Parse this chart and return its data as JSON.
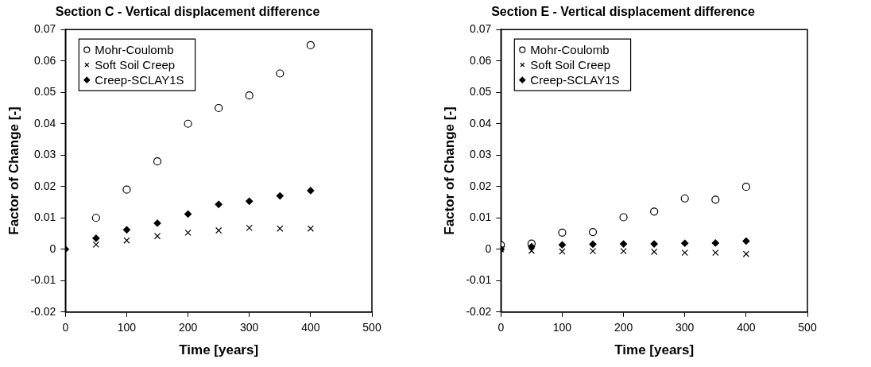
{
  "chart_data": [
    {
      "type": "scatter",
      "title": "Section C - Vertical displacement difference",
      "xlabel": "Time [years]",
      "ylabel": "Factor of Change [-]",
      "x": [
        0,
        50,
        100,
        150,
        200,
        250,
        300,
        350,
        400
      ],
      "series": [
        {
          "name": "Mohr-Coulomb",
          "color": "#000000",
          "marker": "circle",
          "values": [
            null,
            0.01,
            0.019,
            0.028,
            0.04,
            0.045,
            0.049,
            0.056,
            0.065
          ]
        },
        {
          "name": "Soft Soil Creep",
          "color": "#000000",
          "marker": "cross",
          "values": [
            null,
            0.0015,
            0.0028,
            0.0042,
            0.0053,
            0.006,
            0.0068,
            0.0066,
            0.0066
          ]
        },
        {
          "name": "Creep-SCLAY1S",
          "color": "#000000",
          "marker": "diamond",
          "values": [
            0,
            0.0035,
            0.0062,
            0.0083,
            0.0112,
            0.0143,
            0.0153,
            0.017,
            0.0187
          ]
        }
      ],
      "xlim": [
        0,
        500
      ],
      "xticks": [
        0,
        100,
        200,
        300,
        400,
        500
      ],
      "ylim": [
        -0.02,
        0.07
      ],
      "yticks": [
        -0.02,
        -0.01,
        0,
        0.01,
        0.02,
        0.03,
        0.04,
        0.05,
        0.06,
        0.07
      ],
      "grid": false,
      "legend": "top left"
    },
    {
      "type": "scatter",
      "title": "Section E - Vertical displacement difference",
      "xlabel": "Time [years]",
      "ylabel": "Factor of Change [-]",
      "x": [
        0,
        50,
        100,
        150,
        200,
        250,
        300,
        350,
        400
      ],
      "series": [
        {
          "name": "Mohr-Coulomb",
          "color": "#000000",
          "marker": "circle",
          "values": [
            0.0013,
            0.0018,
            0.0053,
            0.0055,
            0.0102,
            0.012,
            0.0162,
            0.0158,
            0.0199
          ]
        },
        {
          "name": "Soft Soil Creep",
          "color": "#000000",
          "marker": "cross",
          "values": [
            0,
            -0.0005,
            -0.0007,
            -0.0006,
            -0.0006,
            -0.0008,
            -0.0011,
            -0.0011,
            -0.0015
          ]
        },
        {
          "name": "Creep-SCLAY1S",
          "color": "#000000",
          "marker": "diamond",
          "values": [
            0,
            0.0008,
            0.0014,
            0.0016,
            0.0017,
            0.0017,
            0.0019,
            0.002,
            0.0026
          ]
        }
      ],
      "xlim": [
        0,
        500
      ],
      "xticks": [
        0,
        100,
        200,
        300,
        400,
        500
      ],
      "ylim": [
        -0.02,
        0.07
      ],
      "yticks": [
        -0.02,
        -0.01,
        0,
        0.01,
        0.02,
        0.03,
        0.04,
        0.05,
        0.06,
        0.07
      ],
      "grid": false,
      "legend": "top left"
    }
  ]
}
